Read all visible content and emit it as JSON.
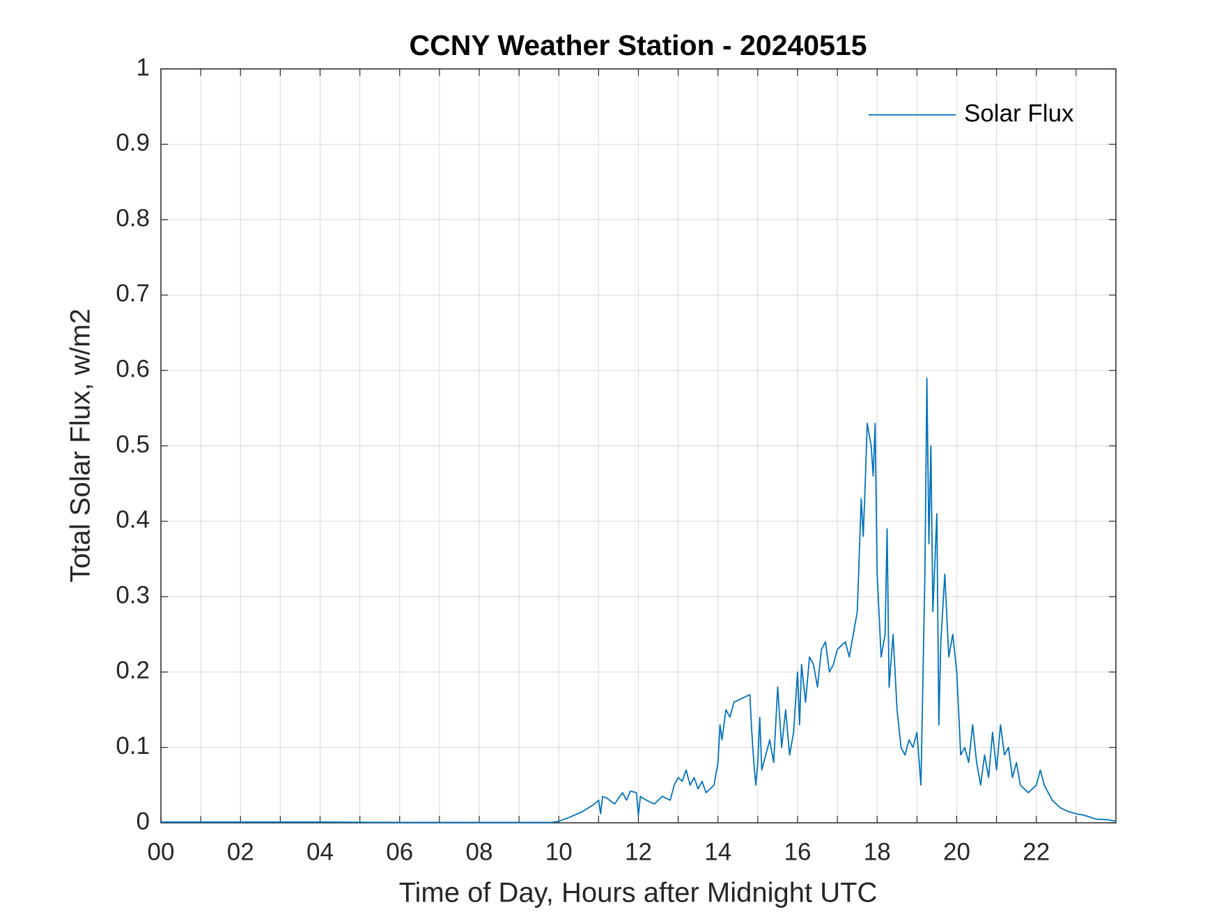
{
  "chart_data": {
    "type": "line",
    "title": "CCNY Weather Station - 20240515",
    "xlabel": "Time of Day, Hours after Midnight UTC",
    "ylabel": "Total Solar Flux, w/m2",
    "xlim": [
      0,
      24
    ],
    "ylim": [
      0,
      1
    ],
    "xticks": [
      {
        "value": 0,
        "label": "00"
      },
      {
        "value": 2,
        "label": "02"
      },
      {
        "value": 4,
        "label": "04"
      },
      {
        "value": 6,
        "label": "06"
      },
      {
        "value": 8,
        "label": "08"
      },
      {
        "value": 10,
        "label": "10"
      },
      {
        "value": 12,
        "label": "12"
      },
      {
        "value": 14,
        "label": "14"
      },
      {
        "value": 16,
        "label": "16"
      },
      {
        "value": 18,
        "label": "18"
      },
      {
        "value": 20,
        "label": "20"
      },
      {
        "value": 22,
        "label": "22"
      }
    ],
    "xminorticks": [
      1,
      3,
      5,
      7,
      9,
      11,
      13,
      15,
      17,
      19,
      21,
      23
    ],
    "yticks": [
      0,
      0.1,
      0.2,
      0.3,
      0.4,
      0.5,
      0.6,
      0.7,
      0.8,
      0.9,
      1
    ],
    "grid": true,
    "legend": "northeast",
    "x": [
      0,
      2,
      4,
      6,
      8,
      9.8,
      10,
      10.3,
      10.6,
      10.9,
      11.0,
      11.05,
      11.1,
      11.2,
      11.4,
      11.6,
      11.7,
      11.8,
      11.95,
      12.0,
      12.05,
      12.2,
      12.4,
      12.6,
      12.8,
      12.9,
      13.0,
      13.1,
      13.2,
      13.3,
      13.4,
      13.5,
      13.6,
      13.7,
      13.9,
      14.0,
      14.05,
      14.1,
      14.2,
      14.3,
      14.4,
      14.6,
      14.8,
      14.85,
      14.9,
      14.95,
      15.0,
      15.05,
      15.1,
      15.2,
      15.3,
      15.4,
      15.5,
      15.6,
      15.7,
      15.8,
      15.9,
      16.0,
      16.05,
      16.1,
      16.2,
      16.3,
      16.4,
      16.5,
      16.6,
      16.7,
      16.8,
      16.9,
      17.0,
      17.2,
      17.3,
      17.4,
      17.5,
      17.6,
      17.65,
      17.7,
      17.75,
      17.85,
      17.9,
      17.95,
      18.0,
      18.1,
      18.2,
      18.25,
      18.3,
      18.4,
      18.5,
      18.6,
      18.7,
      18.8,
      18.9,
      19.0,
      19.1,
      19.2,
      19.25,
      19.3,
      19.35,
      19.4,
      19.5,
      19.55,
      19.6,
      19.7,
      19.8,
      19.9,
      20.0,
      20.1,
      20.2,
      20.3,
      20.4,
      20.5,
      20.6,
      20.7,
      20.8,
      20.9,
      21.0,
      21.1,
      21.2,
      21.3,
      21.4,
      21.5,
      21.6,
      21.8,
      22.0,
      22.1,
      22.2,
      22.4,
      22.6,
      22.8,
      23.0,
      23.2,
      23.5,
      23.8,
      24.0
    ],
    "series": [
      {
        "name": "Solar Flux",
        "color": "#0072bd",
        "values": [
          0.001,
          0.001,
          0.001,
          0.0005,
          0.0005,
          0.0005,
          0.002,
          0.008,
          0.015,
          0.025,
          0.03,
          0.012,
          0.035,
          0.033,
          0.025,
          0.04,
          0.03,
          0.042,
          0.04,
          0.01,
          0.035,
          0.03,
          0.025,
          0.035,
          0.03,
          0.05,
          0.06,
          0.055,
          0.07,
          0.05,
          0.06,
          0.045,
          0.055,
          0.04,
          0.05,
          0.08,
          0.13,
          0.11,
          0.15,
          0.14,
          0.16,
          0.165,
          0.17,
          0.12,
          0.08,
          0.05,
          0.08,
          0.14,
          0.07,
          0.09,
          0.11,
          0.08,
          0.18,
          0.1,
          0.15,
          0.09,
          0.12,
          0.2,
          0.13,
          0.21,
          0.16,
          0.22,
          0.21,
          0.18,
          0.23,
          0.24,
          0.2,
          0.21,
          0.23,
          0.24,
          0.22,
          0.25,
          0.28,
          0.43,
          0.38,
          0.45,
          0.53,
          0.5,
          0.46,
          0.53,
          0.33,
          0.22,
          0.25,
          0.39,
          0.18,
          0.25,
          0.15,
          0.1,
          0.09,
          0.11,
          0.1,
          0.12,
          0.05,
          0.33,
          0.59,
          0.37,
          0.5,
          0.28,
          0.41,
          0.13,
          0.24,
          0.33,
          0.22,
          0.25,
          0.2,
          0.09,
          0.1,
          0.08,
          0.13,
          0.08,
          0.05,
          0.09,
          0.06,
          0.12,
          0.07,
          0.13,
          0.09,
          0.1,
          0.06,
          0.08,
          0.05,
          0.04,
          0.05,
          0.07,
          0.05,
          0.03,
          0.02,
          0.015,
          0.012,
          0.01,
          0.005,
          0.004,
          0.002
        ]
      }
    ]
  }
}
